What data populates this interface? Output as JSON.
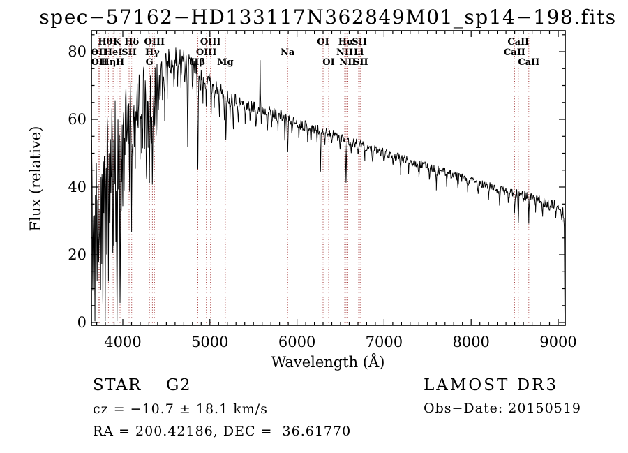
{
  "title": "spec−57162−HD133117N362849M01_sp14−198.fits",
  "footer": {
    "class_line": "STAR    G2",
    "cz_line": "cz = −10.7 ± 18.1 km/s",
    "radec_line": "RA = 200.42186, DEC =  36.61770",
    "survey": "LAMOST DR3",
    "obsdate": "Obs−Date: 20150519"
  },
  "chart_data": {
    "type": "line",
    "title": "spec−57162−HD133117N362849M01_sp14−198.fits",
    "xlabel": "Wavelength (Å)",
    "ylabel": "Flux (relative)",
    "xlim": [
      3640,
      9080
    ],
    "ylim": [
      0,
      86
    ],
    "xticks": [
      4000,
      5000,
      6000,
      7000,
      8000,
      9000
    ],
    "yticks": [
      0,
      20,
      40,
      60,
      80
    ],
    "x_minor_step": 100,
    "y_minor_step": 5,
    "grid": false,
    "line_color": "#000000",
    "marker_line_color": "#a03030",
    "spectral_lines": [
      {
        "label": "OII",
        "wavelength": 3726,
        "row": 2
      },
      {
        "label": "OII",
        "wavelength": 3729,
        "row": 3
      },
      {
        "label": "Hθ",
        "wavelength": 3798,
        "row": 1
      },
      {
        "label": "Hη",
        "wavelength": 3835,
        "row": 3
      },
      {
        "label": "HeI",
        "wavelength": 3889,
        "row": 2
      },
      {
        "label": "K",
        "wavelength": 3933,
        "row": 1
      },
      {
        "label": "H",
        "wavelength": 3968,
        "row": 3
      },
      {
        "label": "SII",
        "wavelength": 4072,
        "row": 2
      },
      {
        "label": "Hδ",
        "wavelength": 4102,
        "row": 1
      },
      {
        "label": "G",
        "wavelength": 4306,
        "row": 3
      },
      {
        "label": "Hγ",
        "wavelength": 4340,
        "row": 2
      },
      {
        "label": "OIII",
        "wavelength": 4363,
        "row": 1
      },
      {
        "label": "Hβ",
        "wavelength": 4861,
        "row": 3
      },
      {
        "label": "OIII",
        "wavelength": 4959,
        "row": 2
      },
      {
        "label": "OIII",
        "wavelength": 5007,
        "row": 1
      },
      {
        "label": "Mg",
        "wavelength": 5177,
        "row": 3
      },
      {
        "label": "Na",
        "wavelength": 5893,
        "row": 2
      },
      {
        "label": "OI",
        "wavelength": 6300,
        "row": 1
      },
      {
        "label": "OI",
        "wavelength": 6364,
        "row": 3
      },
      {
        "label": "NII",
        "wavelength": 6548,
        "row": 2
      },
      {
        "label": "Hα",
        "wavelength": 6563,
        "row": 1
      },
      {
        "label": "NII",
        "wavelength": 6583,
        "row": 3
      },
      {
        "label": "Li",
        "wavelength": 6708,
        "row": 2
      },
      {
        "label": "SII",
        "wavelength": 6716,
        "row": 1
      },
      {
        "label": "SII",
        "wavelength": 6731,
        "row": 3
      },
      {
        "label": "CaII",
        "wavelength": 8498,
        "row": 2
      },
      {
        "label": "CaII",
        "wavelength": 8542,
        "row": 1
      },
      {
        "label": "CaII",
        "wavelength": 8662,
        "row": 3
      }
    ],
    "continuum_anchors": [
      [
        3640,
        55
      ],
      [
        3660,
        58
      ],
      [
        3700,
        61
      ],
      [
        3740,
        63
      ],
      [
        3780,
        64
      ],
      [
        3820,
        66
      ],
      [
        3860,
        67
      ],
      [
        3900,
        68
      ],
      [
        3940,
        69
      ],
      [
        3980,
        70
      ],
      [
        4020,
        70
      ],
      [
        4080,
        71
      ],
      [
        4140,
        72
      ],
      [
        4200,
        72
      ],
      [
        4260,
        73
      ],
      [
        4320,
        74
      ],
      [
        4380,
        75
      ],
      [
        4440,
        76
      ],
      [
        4500,
        77
      ],
      [
        4560,
        78
      ],
      [
        4620,
        78.5
      ],
      [
        4680,
        78.5
      ],
      [
        4740,
        78
      ],
      [
        4800,
        76.5
      ],
      [
        4860,
        75
      ],
      [
        4920,
        73
      ],
      [
        4980,
        71.5
      ],
      [
        5040,
        70
      ],
      [
        5100,
        69
      ],
      [
        5160,
        68
      ],
      [
        5220,
        66.5
      ],
      [
        5280,
        66
      ],
      [
        5340,
        65
      ],
      [
        5400,
        64.5
      ],
      [
        5460,
        64
      ],
      [
        5520,
        63.5
      ],
      [
        5580,
        63
      ],
      [
        5640,
        62.5
      ],
      [
        5700,
        62
      ],
      [
        5760,
        61.5
      ],
      [
        5820,
        61
      ],
      [
        5880,
        60
      ],
      [
        5940,
        59.5
      ],
      [
        6000,
        59
      ],
      [
        6060,
        58.5
      ],
      [
        6120,
        58
      ],
      [
        6180,
        57.5
      ],
      [
        6240,
        57
      ],
      [
        6300,
        56.5
      ],
      [
        6360,
        56
      ],
      [
        6420,
        55.5
      ],
      [
        6480,
        55
      ],
      [
        6540,
        54.5
      ],
      [
        6600,
        53.5
      ],
      [
        6660,
        53
      ],
      [
        6720,
        52.5
      ],
      [
        6780,
        52
      ],
      [
        6840,
        51.5
      ],
      [
        6900,
        51
      ],
      [
        6960,
        50.5
      ],
      [
        7020,
        50
      ],
      [
        7080,
        49.5
      ],
      [
        7140,
        49
      ],
      [
        7200,
        48.5
      ],
      [
        7260,
        48
      ],
      [
        7320,
        47.5
      ],
      [
        7380,
        47
      ],
      [
        7440,
        46.5
      ],
      [
        7500,
        46
      ],
      [
        7560,
        45.5
      ],
      [
        7620,
        45
      ],
      [
        7680,
        44.5
      ],
      [
        7740,
        44
      ],
      [
        7800,
        43.5
      ],
      [
        7860,
        43
      ],
      [
        7920,
        42.5
      ],
      [
        7980,
        42
      ],
      [
        8040,
        41.5
      ],
      [
        8100,
        41
      ],
      [
        8160,
        40.5
      ],
      [
        8220,
        40
      ],
      [
        8280,
        39.5
      ],
      [
        8340,
        39
      ],
      [
        8400,
        38.8
      ],
      [
        8460,
        38.5
      ],
      [
        8520,
        38.2
      ],
      [
        8580,
        37.8
      ],
      [
        8640,
        37.3
      ],
      [
        8700,
        36.8
      ],
      [
        8760,
        36.3
      ],
      [
        8820,
        35.8
      ],
      [
        8880,
        35.3
      ],
      [
        8940,
        34.8
      ],
      [
        9000,
        34.3
      ],
      [
        9040,
        33.5
      ],
      [
        9060,
        32
      ],
      [
        9070,
        28
      ]
    ],
    "edge_drop": {
      "wavelength": 9076,
      "flux": 2
    },
    "noise_profile": [
      [
        3640,
        13
      ],
      [
        3720,
        12
      ],
      [
        3800,
        11
      ],
      [
        3880,
        10
      ],
      [
        3960,
        9
      ],
      [
        4050,
        7
      ],
      [
        4150,
        6
      ],
      [
        4250,
        5
      ],
      [
        4400,
        4
      ],
      [
        4600,
        3.2
      ],
      [
        4800,
        2.8
      ],
      [
        5000,
        2.4
      ],
      [
        5300,
        2.1
      ],
      [
        5600,
        1.9
      ],
      [
        6000,
        1.7
      ],
      [
        6500,
        1.5
      ],
      [
        7000,
        1.4
      ],
      [
        7500,
        1.3
      ],
      [
        8000,
        1.3
      ],
      [
        8500,
        1.4
      ],
      [
        9070,
        1.5
      ]
    ],
    "noise_seed": 11,
    "absorption_features": [
      [
        3655,
        50,
        5
      ],
      [
        3668,
        30,
        4
      ],
      [
        3680,
        58,
        4
      ],
      [
        3692,
        25,
        4
      ],
      [
        3705,
        35,
        4
      ],
      [
        3716,
        22,
        4
      ],
      [
        3727,
        40,
        4
      ],
      [
        3737,
        30,
        4
      ],
      [
        3745,
        42,
        4
      ],
      [
        3758,
        28,
        4
      ],
      [
        3770,
        48,
        4
      ],
      [
        3782,
        25,
        4
      ],
      [
        3798,
        66,
        5
      ],
      [
        3815,
        28,
        4
      ],
      [
        3835,
        46,
        5
      ],
      [
        3850,
        26,
        4
      ],
      [
        3865,
        34,
        4
      ],
      [
        3889,
        44,
        5
      ],
      [
        3905,
        24,
        4
      ],
      [
        3920,
        30,
        4
      ],
      [
        3933,
        70,
        5
      ],
      [
        3950,
        32,
        4
      ],
      [
        3968,
        62,
        5
      ],
      [
        3985,
        28,
        4
      ],
      [
        4000,
        24,
        4
      ],
      [
        4015,
        20,
        4
      ],
      [
        4026,
        22,
        4
      ],
      [
        4045,
        18,
        4
      ],
      [
        4063,
        20,
        4
      ],
      [
        4078,
        24,
        4
      ],
      [
        4101,
        42,
        5
      ],
      [
        4118,
        18,
        4
      ],
      [
        4132,
        14,
        4
      ],
      [
        4144,
        18,
        4
      ],
      [
        4160,
        12,
        4
      ],
      [
        4178,
        14,
        4
      ],
      [
        4200,
        16,
        4
      ],
      [
        4215,
        14,
        4
      ],
      [
        4227,
        22,
        4
      ],
      [
        4250,
        14,
        4
      ],
      [
        4271,
        30,
        4
      ],
      [
        4290,
        18,
        4
      ],
      [
        4306,
        30,
        5
      ],
      [
        4325,
        20,
        4
      ],
      [
        4340,
        32,
        5
      ],
      [
        4363,
        14,
        4
      ],
      [
        4383,
        22,
        4
      ],
      [
        4405,
        14,
        4
      ],
      [
        4430,
        10,
        4
      ],
      [
        4455,
        9,
        4
      ],
      [
        4481,
        11,
        4
      ],
      [
        4510,
        8,
        4
      ],
      [
        4550,
        7,
        4
      ],
      [
        4590,
        8,
        4
      ],
      [
        4630,
        6,
        4
      ],
      [
        4668,
        9,
        4
      ],
      [
        4710,
        7,
        4
      ],
      [
        4745,
        24,
        4
      ],
      [
        4800,
        7,
        4
      ],
      [
        4861,
        30,
        5
      ],
      [
        4890,
        6,
        4
      ],
      [
        4920,
        8,
        4
      ],
      [
        4957,
        7,
        4
      ],
      [
        5015,
        8,
        4
      ],
      [
        5050,
        5,
        4
      ],
      [
        5110,
        6,
        4
      ],
      [
        5167,
        9,
        4
      ],
      [
        5183,
        12,
        4
      ],
      [
        5230,
        5,
        4
      ],
      [
        5270,
        7,
        4
      ],
      [
        5328,
        6,
        4
      ],
      [
        5405,
        5,
        4
      ],
      [
        5460,
        4,
        4
      ],
      [
        5528,
        5,
        4
      ],
      [
        5590,
        3,
        3
      ],
      [
        5660,
        4,
        4
      ],
      [
        5711,
        4,
        4
      ],
      [
        5782,
        3,
        4
      ],
      [
        5860,
        5,
        4
      ],
      [
        5893,
        10,
        4
      ],
      [
        5940,
        3,
        4
      ],
      [
        6020,
        3,
        4
      ],
      [
        6122,
        4,
        4
      ],
      [
        6162,
        4,
        4
      ],
      [
        6230,
        3,
        4
      ],
      [
        6270,
        13,
        3
      ],
      [
        6320,
        3,
        3
      ],
      [
        6400,
        3,
        4
      ],
      [
        6495,
        4,
        4
      ],
      [
        6563,
        12,
        4
      ],
      [
        6620,
        3,
        4
      ],
      [
        6700,
        3,
        4
      ],
      [
        6780,
        3,
        4
      ],
      [
        6870,
        5,
        5
      ],
      [
        7000,
        3,
        4
      ],
      [
        7100,
        3,
        4
      ],
      [
        7190,
        4,
        4
      ],
      [
        7280,
        3,
        4
      ],
      [
        7400,
        3,
        4
      ],
      [
        7520,
        3,
        4
      ],
      [
        7600,
        5,
        5
      ],
      [
        7720,
        3,
        4
      ],
      [
        7850,
        3,
        4
      ],
      [
        7960,
        3,
        4
      ],
      [
        8080,
        3,
        4
      ],
      [
        8200,
        3,
        4
      ],
      [
        8327,
        4,
        4
      ],
      [
        8430,
        3,
        4
      ],
      [
        8498,
        5,
        3.5
      ],
      [
        8542,
        8,
        3.5
      ],
      [
        8600,
        3,
        3
      ],
      [
        8662,
        7,
        3.5
      ],
      [
        8740,
        3,
        4
      ],
      [
        8820,
        4,
        4
      ],
      [
        8900,
        3,
        4
      ],
      [
        8970,
        3,
        4
      ],
      [
        9040,
        3,
        4
      ]
    ],
    "emission_features": [
      [
        5577,
        14,
        2.2
      ]
    ]
  }
}
